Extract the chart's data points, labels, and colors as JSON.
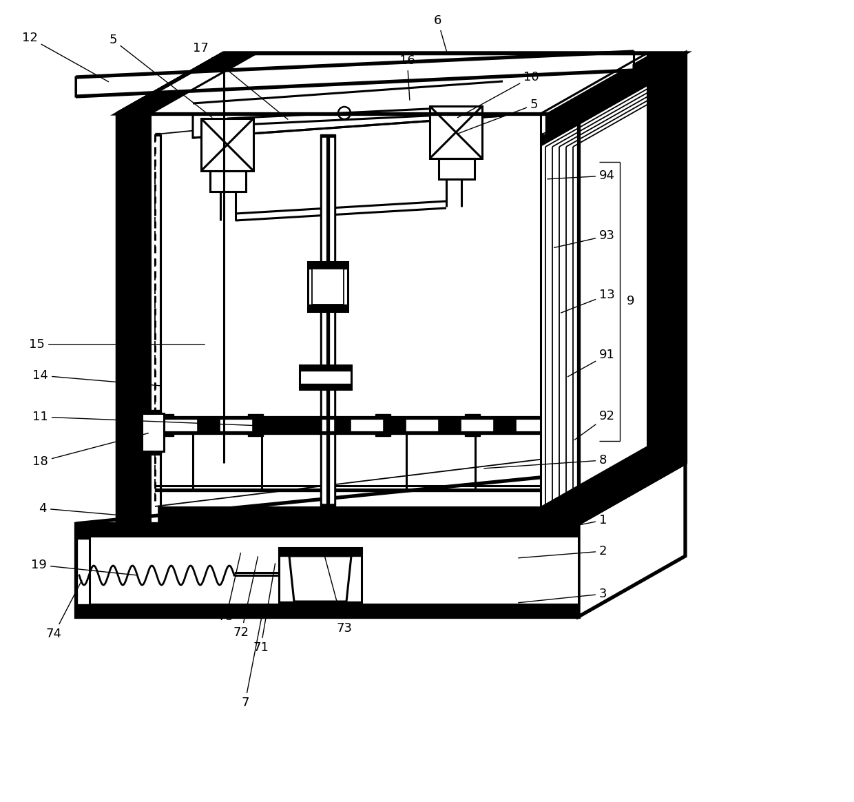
{
  "bg_color": "#ffffff",
  "lw_thick": 3.8,
  "lw_med": 2.2,
  "lw_thin": 1.3,
  "lw_annot": 1.0,
  "label_fontsize": 13,
  "figsize": [
    12.4,
    11.64
  ],
  "dpi": 100
}
